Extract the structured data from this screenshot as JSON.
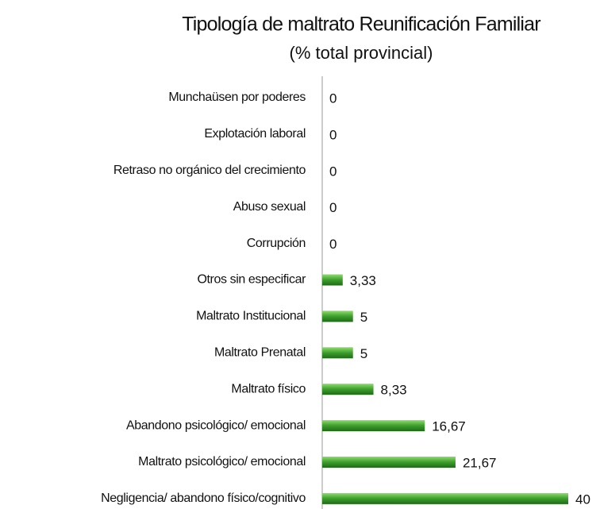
{
  "chart_data": {
    "type": "barh",
    "title": "Tipología de maltrato Reunificación Familiar",
    "subtitle": "(% total provincial)",
    "categories": [
      "Munchaüsen por poderes",
      "Explotación laboral",
      "Retraso no orgánico del crecimiento",
      "Abuso sexual",
      "Corrupción",
      "Otros sin especificar",
      "Maltrato  Institucional",
      "Maltrato Prenatal",
      "Maltrato físico",
      "Abandono psicológico/ emocional",
      "Maltrato psicológico/ emocional",
      "Negligencia/ abandono físico/cognitivo"
    ],
    "values": [
      0,
      0,
      0,
      0,
      0,
      3.33,
      5,
      5,
      8.33,
      16.67,
      21.67,
      40
    ],
    "value_labels": [
      "0",
      "0",
      "0",
      "0",
      "0",
      "3,33",
      "5",
      "5",
      "8,33",
      "16,67",
      "21,67",
      "40"
    ],
    "color": "#3c9e2c",
    "xlim": [
      0,
      40
    ]
  }
}
